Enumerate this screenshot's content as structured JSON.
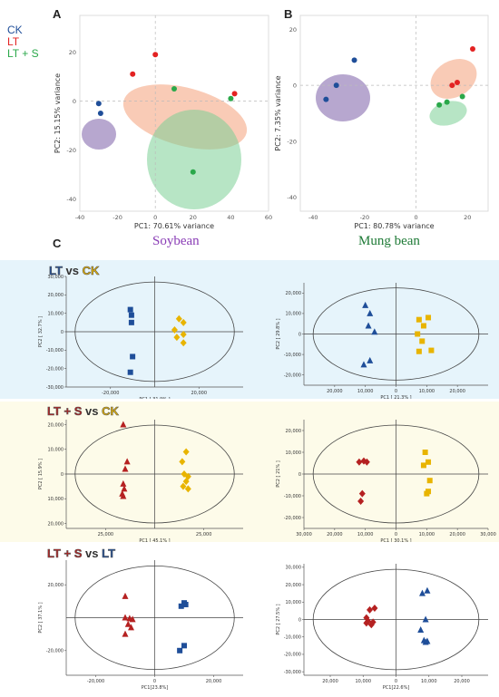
{
  "panel_labels": {
    "a": "A",
    "b": "B",
    "c": "C"
  },
  "legend": [
    {
      "label": "CK",
      "color": "#1f4e99"
    },
    {
      "label": "LT",
      "color": "#e32222"
    },
    {
      "label": "LT + S",
      "color": "#2aa84a"
    }
  ],
  "crops": {
    "soybean": {
      "label": "Soybean",
      "color": "#8a3db6"
    },
    "mung_bean": {
      "label": "Mung bean",
      "color": "#1e7a36"
    }
  },
  "comparisons": [
    {
      "parts": [
        "LT",
        " vs ",
        "CK"
      ],
      "colors": [
        "#1f4e99",
        "#333333",
        "#e8b400"
      ],
      "band": "#e6f4fb"
    },
    {
      "parts": [
        "LT + S",
        " vs ",
        "CK"
      ],
      "colors": [
        "#b52121",
        "#333333",
        "#e8b400"
      ],
      "band": "#fdfbe9"
    },
    {
      "parts": [
        "LT + S",
        " vs ",
        "LT"
      ],
      "colors": [
        "#b52121",
        "#333333",
        "#1f4e99"
      ],
      "band": "#ffffff"
    }
  ],
  "chart_data": [
    {
      "type": "scatter",
      "panel": "A",
      "xlabel": "PC1: 70.61% variance",
      "ylabel": "PC2: 15.15% variance",
      "xlim": [
        -40,
        60
      ],
      "ylim": [
        -45,
        35
      ],
      "xticks": [
        -40,
        -20,
        0,
        20,
        40,
        60
      ],
      "yticks": [
        -40,
        -20,
        0,
        20
      ],
      "series": [
        {
          "name": "CK",
          "color": "#1f4e99",
          "ellipse": "#7b5ea7",
          "points": [
            [
              -30,
              -1
            ],
            [
              -29,
              -5
            ]
          ]
        },
        {
          "name": "LT",
          "color": "#e32222",
          "ellipse": "#f4a07a",
          "points": [
            [
              -12,
              11
            ],
            [
              0,
              19
            ],
            [
              42,
              3
            ]
          ]
        },
        {
          "name": "LT + S",
          "color": "#2aa84a",
          "ellipse": "#7ccf95",
          "points": [
            [
              10,
              5
            ],
            [
              40,
              1
            ],
            [
              20,
              -29
            ]
          ]
        }
      ]
    },
    {
      "type": "scatter",
      "panel": "B",
      "xlabel": "PC1: 80.78% variance",
      "ylabel": "PC2: 7.35% variance",
      "xlim": [
        -45,
        28
      ],
      "ylim": [
        -45,
        25
      ],
      "xticks": [
        -40,
        -20,
        0,
        20
      ],
      "yticks": [
        -40,
        -20,
        0,
        20
      ],
      "series": [
        {
          "name": "CK",
          "color": "#1f4e99",
          "ellipse": "#7b5ea7",
          "points": [
            [
              -24,
              9
            ],
            [
              -31,
              0
            ],
            [
              -35,
              -5
            ]
          ]
        },
        {
          "name": "LT",
          "color": "#e32222",
          "ellipse": "#f4a07a",
          "points": [
            [
              22,
              13
            ],
            [
              14,
              0
            ],
            [
              16,
              1
            ]
          ]
        },
        {
          "name": "LT + S",
          "color": "#2aa84a",
          "ellipse": "#7ccf95",
          "points": [
            [
              9,
              -7
            ],
            [
              12,
              -6
            ],
            [
              18,
              -4
            ]
          ]
        }
      ]
    },
    {
      "type": "scatter",
      "panel": "C-soybean-LT-vs-CK",
      "xlabel": "PC1 [ 31.9% ]",
      "ylabel": "PC2 [ 32.7% ]",
      "xlim": [
        -40000,
        40000
      ],
      "ylim": [
        -30000,
        30000
      ],
      "xticks": [
        -20000,
        20000
      ],
      "xtick_labels": [
        "-20,000",
        "20,000"
      ],
      "yticks": [
        30000,
        20000,
        10000,
        0,
        -10000,
        -20000,
        -30000
      ],
      "ytick_labels": [
        "30,000",
        "20,000",
        "10,000",
        "0",
        "-10,000",
        "-20,000",
        "-30,000"
      ],
      "series": [
        {
          "name": "LT",
          "color": "#1f4e99",
          "marker": "square",
          "points": [
            [
              -11000,
              12000
            ],
            [
              -10500,
              9000
            ],
            [
              -10500,
              5000
            ],
            [
              -10000,
              -13500
            ],
            [
              -11000,
              -22000
            ]
          ]
        },
        {
          "name": "CK",
          "color": "#e8b400",
          "marker": "diamond",
          "points": [
            [
              11000,
              7000
            ],
            [
              13000,
              5000
            ],
            [
              9000,
              1000
            ],
            [
              13000,
              -1500
            ],
            [
              10000,
              -3000
            ],
            [
              13000,
              -6000
            ]
          ]
        }
      ]
    },
    {
      "type": "scatter",
      "panel": "C-mungbean-LT-vs-CK",
      "xlabel": "PC1 [ 21.3% ]",
      "ylabel": "PC2 [ 29.8% ]",
      "xlim": [
        -30000,
        30000
      ],
      "ylim": [
        -25000,
        25000
      ],
      "xticks": [
        20000,
        10000,
        0,
        -10000,
        -20000
      ],
      "xtick_labels": [
        "20,000",
        "10,000",
        "0",
        "10,000",
        "20,000"
      ],
      "yticks": [
        20000,
        10000,
        0,
        -10000,
        -20000
      ],
      "ytick_labels": [
        "20,000",
        "10,000",
        "0",
        "-10,000",
        "-20,000"
      ],
      "series": [
        {
          "name": "LT",
          "color": "#1f4e99",
          "marker": "triangle",
          "points": [
            [
              -10000,
              14000
            ],
            [
              -8500,
              10000
            ],
            [
              -9000,
              4000
            ],
            [
              -7000,
              1000
            ],
            [
              -8500,
              -13000
            ],
            [
              -10500,
              -15000
            ]
          ]
        },
        {
          "name": "CK",
          "color": "#e8b400",
          "marker": "square",
          "points": [
            [
              10500,
              8000
            ],
            [
              7500,
              7000
            ],
            [
              9000,
              4000
            ],
            [
              7000,
              0
            ],
            [
              8500,
              -3500
            ],
            [
              11500,
              -8000
            ],
            [
              7500,
              -8500
            ]
          ]
        }
      ]
    },
    {
      "type": "scatter",
      "panel": "C-soybean-LTS-vs-CK",
      "xlabel": "PC1 [ 45.1% ]",
      "ylabel": "PC2 [ 15.9% ]",
      "xlim": [
        -45000,
        45000
      ],
      "ylim": [
        -22000,
        22000
      ],
      "xticks": [
        -25000,
        25000
      ],
      "xtick_labels": [
        "25,000",
        "25,000"
      ],
      "yticks": [
        20000,
        10000,
        0,
        -10000,
        -20000
      ],
      "ytick_labels": [
        "20,000",
        "10,000",
        "0",
        "10,000",
        "20,000"
      ],
      "series": [
        {
          "name": "LT + S",
          "color": "#b52121",
          "marker": "triangle",
          "points": [
            [
              -16000,
              20000
            ],
            [
              -14000,
              5000
            ],
            [
              -15000,
              2000
            ],
            [
              -16000,
              -4000
            ],
            [
              -15500,
              -6000
            ],
            [
              -16500,
              -8000
            ],
            [
              -16000,
              -9000
            ]
          ]
        },
        {
          "name": "CK",
          "color": "#e8b400",
          "marker": "diamond",
          "points": [
            [
              16000,
              9000
            ],
            [
              14000,
              5000
            ],
            [
              15000,
              0
            ],
            [
              17000,
              -1000
            ],
            [
              16000,
              -3000
            ],
            [
              14500,
              -5000
            ],
            [
              17000,
              -6000
            ]
          ]
        }
      ]
    },
    {
      "type": "scatter",
      "panel": "C-mungbean-LTS-vs-CK",
      "xlabel": "PC1 [ 30.1% ]",
      "ylabel": "PC2 [ 21% ]",
      "xlim": [
        -30000,
        30000
      ],
      "ylim": [
        -25000,
        25000
      ],
      "xticks": [
        -30000,
        -20000,
        -10000,
        0,
        10000,
        20000,
        30000
      ],
      "xtick_labels": [
        "30,000",
        "20,000",
        "10,000",
        "0",
        "10,000",
        "20,000",
        "30,000"
      ],
      "yticks": [
        20000,
        10000,
        0,
        -10000,
        -20000
      ],
      "ytick_labels": [
        "20,000",
        "10,000",
        "0",
        "-10,000",
        "-20,000"
      ],
      "series": [
        {
          "name": "LT + S",
          "color": "#b52121",
          "marker": "diamond",
          "points": [
            [
              -12000,
              5500
            ],
            [
              -10500,
              6000
            ],
            [
              -9500,
              5500
            ],
            [
              -11000,
              -9000
            ],
            [
              -11500,
              -12500
            ]
          ]
        },
        {
          "name": "CK",
          "color": "#e8b400",
          "marker": "square",
          "points": [
            [
              9500,
              10000
            ],
            [
              10500,
              5500
            ],
            [
              9000,
              4000
            ],
            [
              11000,
              -3000
            ],
            [
              10500,
              -8000
            ],
            [
              10000,
              -9000
            ]
          ]
        }
      ]
    },
    {
      "type": "scatter",
      "panel": "C-soybean-LTS-vs-LT",
      "xlabel": "PC1[23.8%]",
      "ylabel": "PC2 [ 37.1% ]",
      "xlim": [
        -30000,
        30000
      ],
      "ylim": [
        -35000,
        35000
      ],
      "xticks": [
        -20000,
        0,
        20000
      ],
      "xtick_labels": [
        "-20,000",
        "0",
        "20,000"
      ],
      "yticks": [
        20000,
        -20000
      ],
      "ytick_labels": [
        "20,000",
        "-20,000"
      ],
      "series": [
        {
          "name": "LT + S",
          "color": "#b52121",
          "marker": "triangle",
          "points": [
            [
              -10000,
              13000
            ],
            [
              -10000,
              0
            ],
            [
              -8500,
              -500
            ],
            [
              -7500,
              -1000
            ],
            [
              -9000,
              -4000
            ],
            [
              -8000,
              -6000
            ],
            [
              -10000,
              -10000
            ]
          ]
        },
        {
          "name": "LT",
          "color": "#1f4e99",
          "marker": "square",
          "points": [
            [
              10000,
              9000
            ],
            [
              10500,
              8000
            ],
            [
              9000,
              7000
            ],
            [
              10000,
              -17000
            ],
            [
              8500,
              -20000
            ]
          ]
        }
      ]
    },
    {
      "type": "scatter",
      "panel": "C-mungbean-LTS-vs-LT",
      "xlabel": "PC1[22.6%]",
      "ylabel": "PC2 [ 27.5% ]",
      "xlim": [
        -28000,
        28000
      ],
      "ylim": [
        -32000,
        32000
      ],
      "xticks": [
        -20000,
        -10000,
        0,
        10000,
        20000
      ],
      "xtick_labels": [
        "20,000",
        "10,000",
        "0",
        "10,000",
        "20,000"
      ],
      "yticks": [
        30000,
        20000,
        10000,
        0,
        -10000,
        -20000,
        -30000
      ],
      "ytick_labels": [
        "30,000",
        "20,000",
        "10,000",
        "0",
        "-10,000",
        "-20,000",
        "-30,000"
      ],
      "series": [
        {
          "name": "LT + S",
          "color": "#b52121",
          "marker": "diamond",
          "points": [
            [
              -8000,
              5500
            ],
            [
              -6500,
              6500
            ],
            [
              -9000,
              1000
            ],
            [
              -8500,
              -1000
            ],
            [
              -7000,
              -1500
            ],
            [
              -9000,
              -2000
            ],
            [
              -7500,
              -3000
            ]
          ]
        },
        {
          "name": "LT",
          "color": "#1f4e99",
          "marker": "triangle",
          "points": [
            [
              8000,
              15000
            ],
            [
              9500,
              16500
            ],
            [
              9000,
              0
            ],
            [
              7500,
              -6000
            ],
            [
              8500,
              -12000
            ],
            [
              9500,
              -12500
            ],
            [
              9000,
              -13000
            ]
          ]
        }
      ]
    }
  ]
}
